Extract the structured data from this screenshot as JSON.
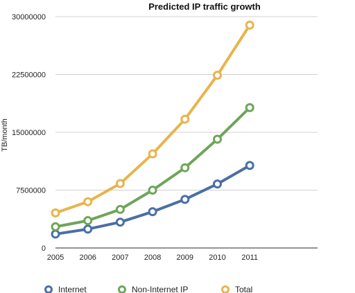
{
  "chart_data": {
    "type": "line",
    "title": "Predicted IP traffic growth",
    "xlabel": "",
    "ylabel": "TB/month",
    "categories": [
      "2005",
      "2006",
      "2007",
      "2008",
      "2009",
      "2010",
      "2011"
    ],
    "ylim": [
      0,
      30000000
    ],
    "yticks": [
      0,
      7500000,
      15000000,
      22500000,
      30000000
    ],
    "ytick_labels": [
      "0",
      "7500000",
      "15000000",
      "22500000",
      "30000000"
    ],
    "grid": "horizontal",
    "legend": "bottom",
    "series": [
      {
        "name": "Internet",
        "color": "#4a6fa5",
        "values": [
          1800000,
          2450000,
          3350000,
          4700000,
          6300000,
          8300000,
          10700000
        ]
      },
      {
        "name": "Non-Internet IP",
        "color": "#6ea55a",
        "values": [
          2750000,
          3550000,
          5000000,
          7500000,
          10400000,
          14100000,
          18200000
        ]
      },
      {
        "name": "Total",
        "color": "#e9b44c",
        "values": [
          4550000,
          6000000,
          8350000,
          12200000,
          16700000,
          22400000,
          28900000
        ]
      }
    ]
  }
}
